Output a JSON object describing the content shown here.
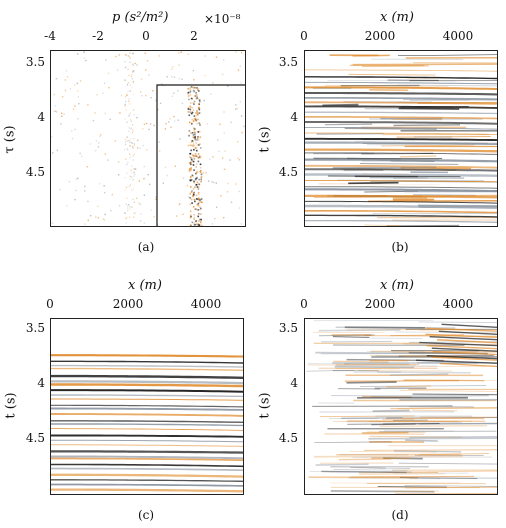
{
  "panels": [
    {
      "id": "a",
      "caption": "(a)",
      "xlabel_html": "p (s²/m²)",
      "xlabel_var": "p",
      "xlabel_unit": "(s²/m²)",
      "ylabel": "τ (s)",
      "multiplier": "×10⁻⁸",
      "xticks": [
        "-4",
        "-2",
        "0",
        "2"
      ],
      "yticks": [
        "3.5",
        "4",
        "4.5"
      ]
    },
    {
      "id": "b",
      "caption": "(b)",
      "xlabel": "x (m)",
      "ylabel": "t (s)",
      "xticks": [
        "0",
        "2000",
        "4000"
      ],
      "yticks": [
        "3.5",
        "4",
        "4.5"
      ]
    },
    {
      "id": "c",
      "caption": "(c)",
      "xlabel": "x (m)",
      "ylabel": "t (s)",
      "xticks": [
        "0",
        "2000",
        "4000"
      ],
      "yticks": [
        "3.5",
        "4",
        "4.5"
      ]
    },
    {
      "id": "d",
      "caption": "(d)",
      "xlabel": "x (m)",
      "ylabel": "t (s)",
      "xticks": [
        "0",
        "2000",
        "4000"
      ],
      "yticks": [
        "3.5",
        "4",
        "4.5"
      ]
    }
  ],
  "colors": {
    "orange": "#e08a2a",
    "dark": "#1a1a1a",
    "gray": "#8a94a0",
    "white": "#ffffff"
  }
}
